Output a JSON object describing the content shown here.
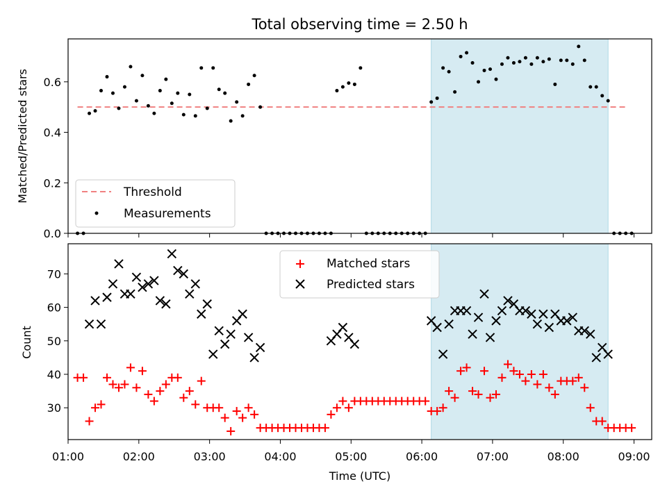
{
  "chart_data": [
    {
      "type": "scatter",
      "title": "Total observing time = 2.50 h",
      "ylabel": "Matched/Predicted stars",
      "xlabel": "",
      "xlim": [
        "01:00",
        "09:15"
      ],
      "ylim": [
        0,
        0.77
      ],
      "yticks": [
        0.0,
        0.2,
        0.4,
        0.6
      ],
      "ytick_labels": [
        "0.0",
        "0.2",
        "0.4",
        "0.6"
      ],
      "grid": false,
      "shaded_region": {
        "from": "06:08",
        "to": "08:38",
        "color": "#add8e6"
      },
      "legend_position": "lower-left",
      "threshold": {
        "name": "Threshold",
        "value": 0.5,
        "from": "01:08",
        "to": "08:55",
        "color": "#f08080"
      },
      "series": [
        {
          "name": "Measurements",
          "color": "#000000",
          "marker": "dot",
          "x": [
            "01:08",
            "01:13",
            "01:18",
            "01:23",
            "01:28",
            "01:33",
            "01:38",
            "01:43",
            "01:48",
            "01:53",
            "01:58",
            "02:03",
            "02:08",
            "02:13",
            "02:18",
            "02:23",
            "02:28",
            "02:33",
            "02:38",
            "02:43",
            "02:48",
            "02:53",
            "02:58",
            "03:03",
            "03:08",
            "03:13",
            "03:18",
            "03:23",
            "03:28",
            "03:33",
            "03:38",
            "03:43",
            "03:48",
            "03:53",
            "03:58",
            "04:03",
            "04:08",
            "04:13",
            "04:18",
            "04:23",
            "04:28",
            "04:33",
            "04:38",
            "04:43",
            "04:48",
            "04:53",
            "04:58",
            "05:03",
            "05:08",
            "05:13",
            "05:18",
            "05:23",
            "05:28",
            "05:33",
            "05:38",
            "05:43",
            "05:48",
            "05:53",
            "05:58",
            "06:03",
            "06:08",
            "06:13",
            "06:18",
            "06:23",
            "06:28",
            "06:33",
            "06:38",
            "06:43",
            "06:48",
            "06:53",
            "06:58",
            "07:03",
            "07:08",
            "07:13",
            "07:18",
            "07:23",
            "07:28",
            "07:33",
            "07:38",
            "07:43",
            "07:48",
            "07:53",
            "07:58",
            "08:03",
            "08:08",
            "08:13",
            "08:18",
            "08:23",
            "08:28",
            "08:33",
            "08:38",
            "08:43",
            "08:48",
            "08:53",
            "08:58"
          ],
          "y": [
            0,
            0,
            0.475,
            0.485,
            0.565,
            0.62,
            0.555,
            0.495,
            0.58,
            0.66,
            0.525,
            0.625,
            0.505,
            0.475,
            0.565,
            0.61,
            0.515,
            0.555,
            0.47,
            0.55,
            0.465,
            0.655,
            0.495,
            0.655,
            0.57,
            0.555,
            0.445,
            0.52,
            0.465,
            0.59,
            0.625,
            0.5,
            0,
            0,
            0,
            0,
            0,
            0,
            0,
            0,
            0,
            0,
            0,
            0,
            0.565,
            0.58,
            0.595,
            0.59,
            0.655,
            0,
            0,
            0,
            0,
            0,
            0,
            0,
            0,
            0,
            0,
            0,
            0.52,
            0.535,
            0.655,
            0.64,
            0.56,
            0.7,
            0.715,
            0.675,
            0.6,
            0.645,
            0.65,
            0.61,
            0.67,
            0.695,
            0.675,
            0.68,
            0.695,
            0.67,
            0.695,
            0.68,
            0.69,
            0.59,
            0.685,
            0.685,
            0.67,
            0.74,
            0.685,
            0.58,
            0.58,
            0.545,
            0.525,
            0,
            0,
            0,
            0
          ]
        }
      ]
    },
    {
      "type": "scatter",
      "title": "",
      "ylabel": "Count",
      "xlabel": "Time (UTC)",
      "xlim": [
        "01:00",
        "09:15"
      ],
      "ylim": [
        20.5,
        79
      ],
      "yticks": [
        30,
        40,
        50,
        60,
        70
      ],
      "ytick_labels": [
        "30",
        "40",
        "50",
        "60",
        "70"
      ],
      "xticks": [
        "01:00",
        "02:00",
        "03:00",
        "04:00",
        "05:00",
        "06:00",
        "07:00",
        "08:00",
        "09:00"
      ],
      "grid": false,
      "shaded_region": {
        "from": "06:08",
        "to": "08:38",
        "color": "#add8e6"
      },
      "legend_position": "upper-center",
      "series": [
        {
          "name": "Matched stars",
          "color": "#ff0000",
          "marker": "plus",
          "x": [
            "01:08",
            "01:13",
            "01:18",
            "01:23",
            "01:28",
            "01:33",
            "01:38",
            "01:43",
            "01:48",
            "01:53",
            "01:58",
            "02:03",
            "02:08",
            "02:13",
            "02:18",
            "02:23",
            "02:28",
            "02:33",
            "02:38",
            "02:43",
            "02:48",
            "02:53",
            "02:58",
            "03:03",
            "03:08",
            "03:13",
            "03:18",
            "03:23",
            "03:28",
            "03:33",
            "03:38",
            "03:43",
            "03:48",
            "03:53",
            "03:58",
            "04:03",
            "04:08",
            "04:13",
            "04:18",
            "04:23",
            "04:28",
            "04:33",
            "04:38",
            "04:43",
            "04:48",
            "04:53",
            "04:58",
            "05:03",
            "05:08",
            "05:13",
            "05:18",
            "05:23",
            "05:28",
            "05:33",
            "05:38",
            "05:43",
            "05:48",
            "05:53",
            "05:58",
            "06:03",
            "06:08",
            "06:13",
            "06:18",
            "06:23",
            "06:28",
            "06:33",
            "06:38",
            "06:43",
            "06:48",
            "06:53",
            "06:58",
            "07:03",
            "07:08",
            "07:13",
            "07:18",
            "07:23",
            "07:28",
            "07:33",
            "07:38",
            "07:43",
            "07:48",
            "07:53",
            "07:58",
            "08:03",
            "08:08",
            "08:13",
            "08:18",
            "08:23",
            "08:28",
            "08:33",
            "08:38",
            "08:43",
            "08:48",
            "08:53",
            "08:58"
          ],
          "y": [
            39,
            39,
            26,
            30,
            31,
            39,
            37,
            36,
            37,
            42,
            36,
            41,
            34,
            32,
            35,
            37,
            39,
            39,
            33,
            35,
            31,
            38,
            30,
            30,
            30,
            27,
            23,
            29,
            27,
            30,
            28,
            24,
            24,
            24,
            24,
            24,
            24,
            24,
            24,
            24,
            24,
            24,
            24,
            28,
            30,
            32,
            30,
            32,
            32,
            32,
            32,
            32,
            32,
            32,
            32,
            32,
            32,
            32,
            32,
            32,
            29,
            29,
            30,
            35,
            33,
            41,
            42,
            35,
            34,
            41,
            33,
            34,
            39,
            43,
            41,
            40,
            38,
            40,
            37,
            40,
            36,
            34,
            38,
            38,
            38,
            39,
            36,
            30,
            26,
            26,
            24,
            24,
            24,
            24,
            24
          ]
        },
        {
          "name": "Predicted stars",
          "color": "#000000",
          "marker": "x",
          "x": [
            "01:18",
            "01:23",
            "01:28",
            "01:33",
            "01:38",
            "01:43",
            "01:48",
            "01:53",
            "01:58",
            "02:03",
            "02:08",
            "02:13",
            "02:18",
            "02:23",
            "02:28",
            "02:33",
            "02:38",
            "02:43",
            "02:48",
            "02:53",
            "02:58",
            "03:03",
            "03:08",
            "03:13",
            "03:18",
            "03:23",
            "03:28",
            "03:33",
            "03:38",
            "03:43",
            "04:43",
            "04:48",
            "04:53",
            "04:58",
            "05:03",
            "06:08",
            "06:13",
            "06:18",
            "06:23",
            "06:28",
            "06:33",
            "06:38",
            "06:43",
            "06:48",
            "06:53",
            "06:58",
            "07:03",
            "07:08",
            "07:13",
            "07:18",
            "07:23",
            "07:28",
            "07:33",
            "07:38",
            "07:43",
            "07:48",
            "07:53",
            "07:58",
            "08:03",
            "08:08",
            "08:13",
            "08:18",
            "08:23",
            "08:28",
            "08:33",
            "08:38"
          ],
          "y": [
            55,
            62,
            55,
            63,
            67,
            73,
            64,
            64,
            69,
            66,
            67,
            68,
            62,
            61,
            76,
            71,
            70,
            64,
            67,
            58,
            61,
            46,
            53,
            49,
            52,
            56,
            58,
            51,
            45,
            48,
            50,
            52,
            54,
            51,
            49,
            56,
            54,
            46,
            55,
            59,
            59,
            59,
            52,
            57,
            64,
            51,
            56,
            59,
            62,
            61,
            59,
            59,
            58,
            55,
            58,
            54,
            58,
            56,
            56,
            57,
            53,
            53,
            52,
            45,
            48,
            46
          ]
        }
      ]
    }
  ]
}
